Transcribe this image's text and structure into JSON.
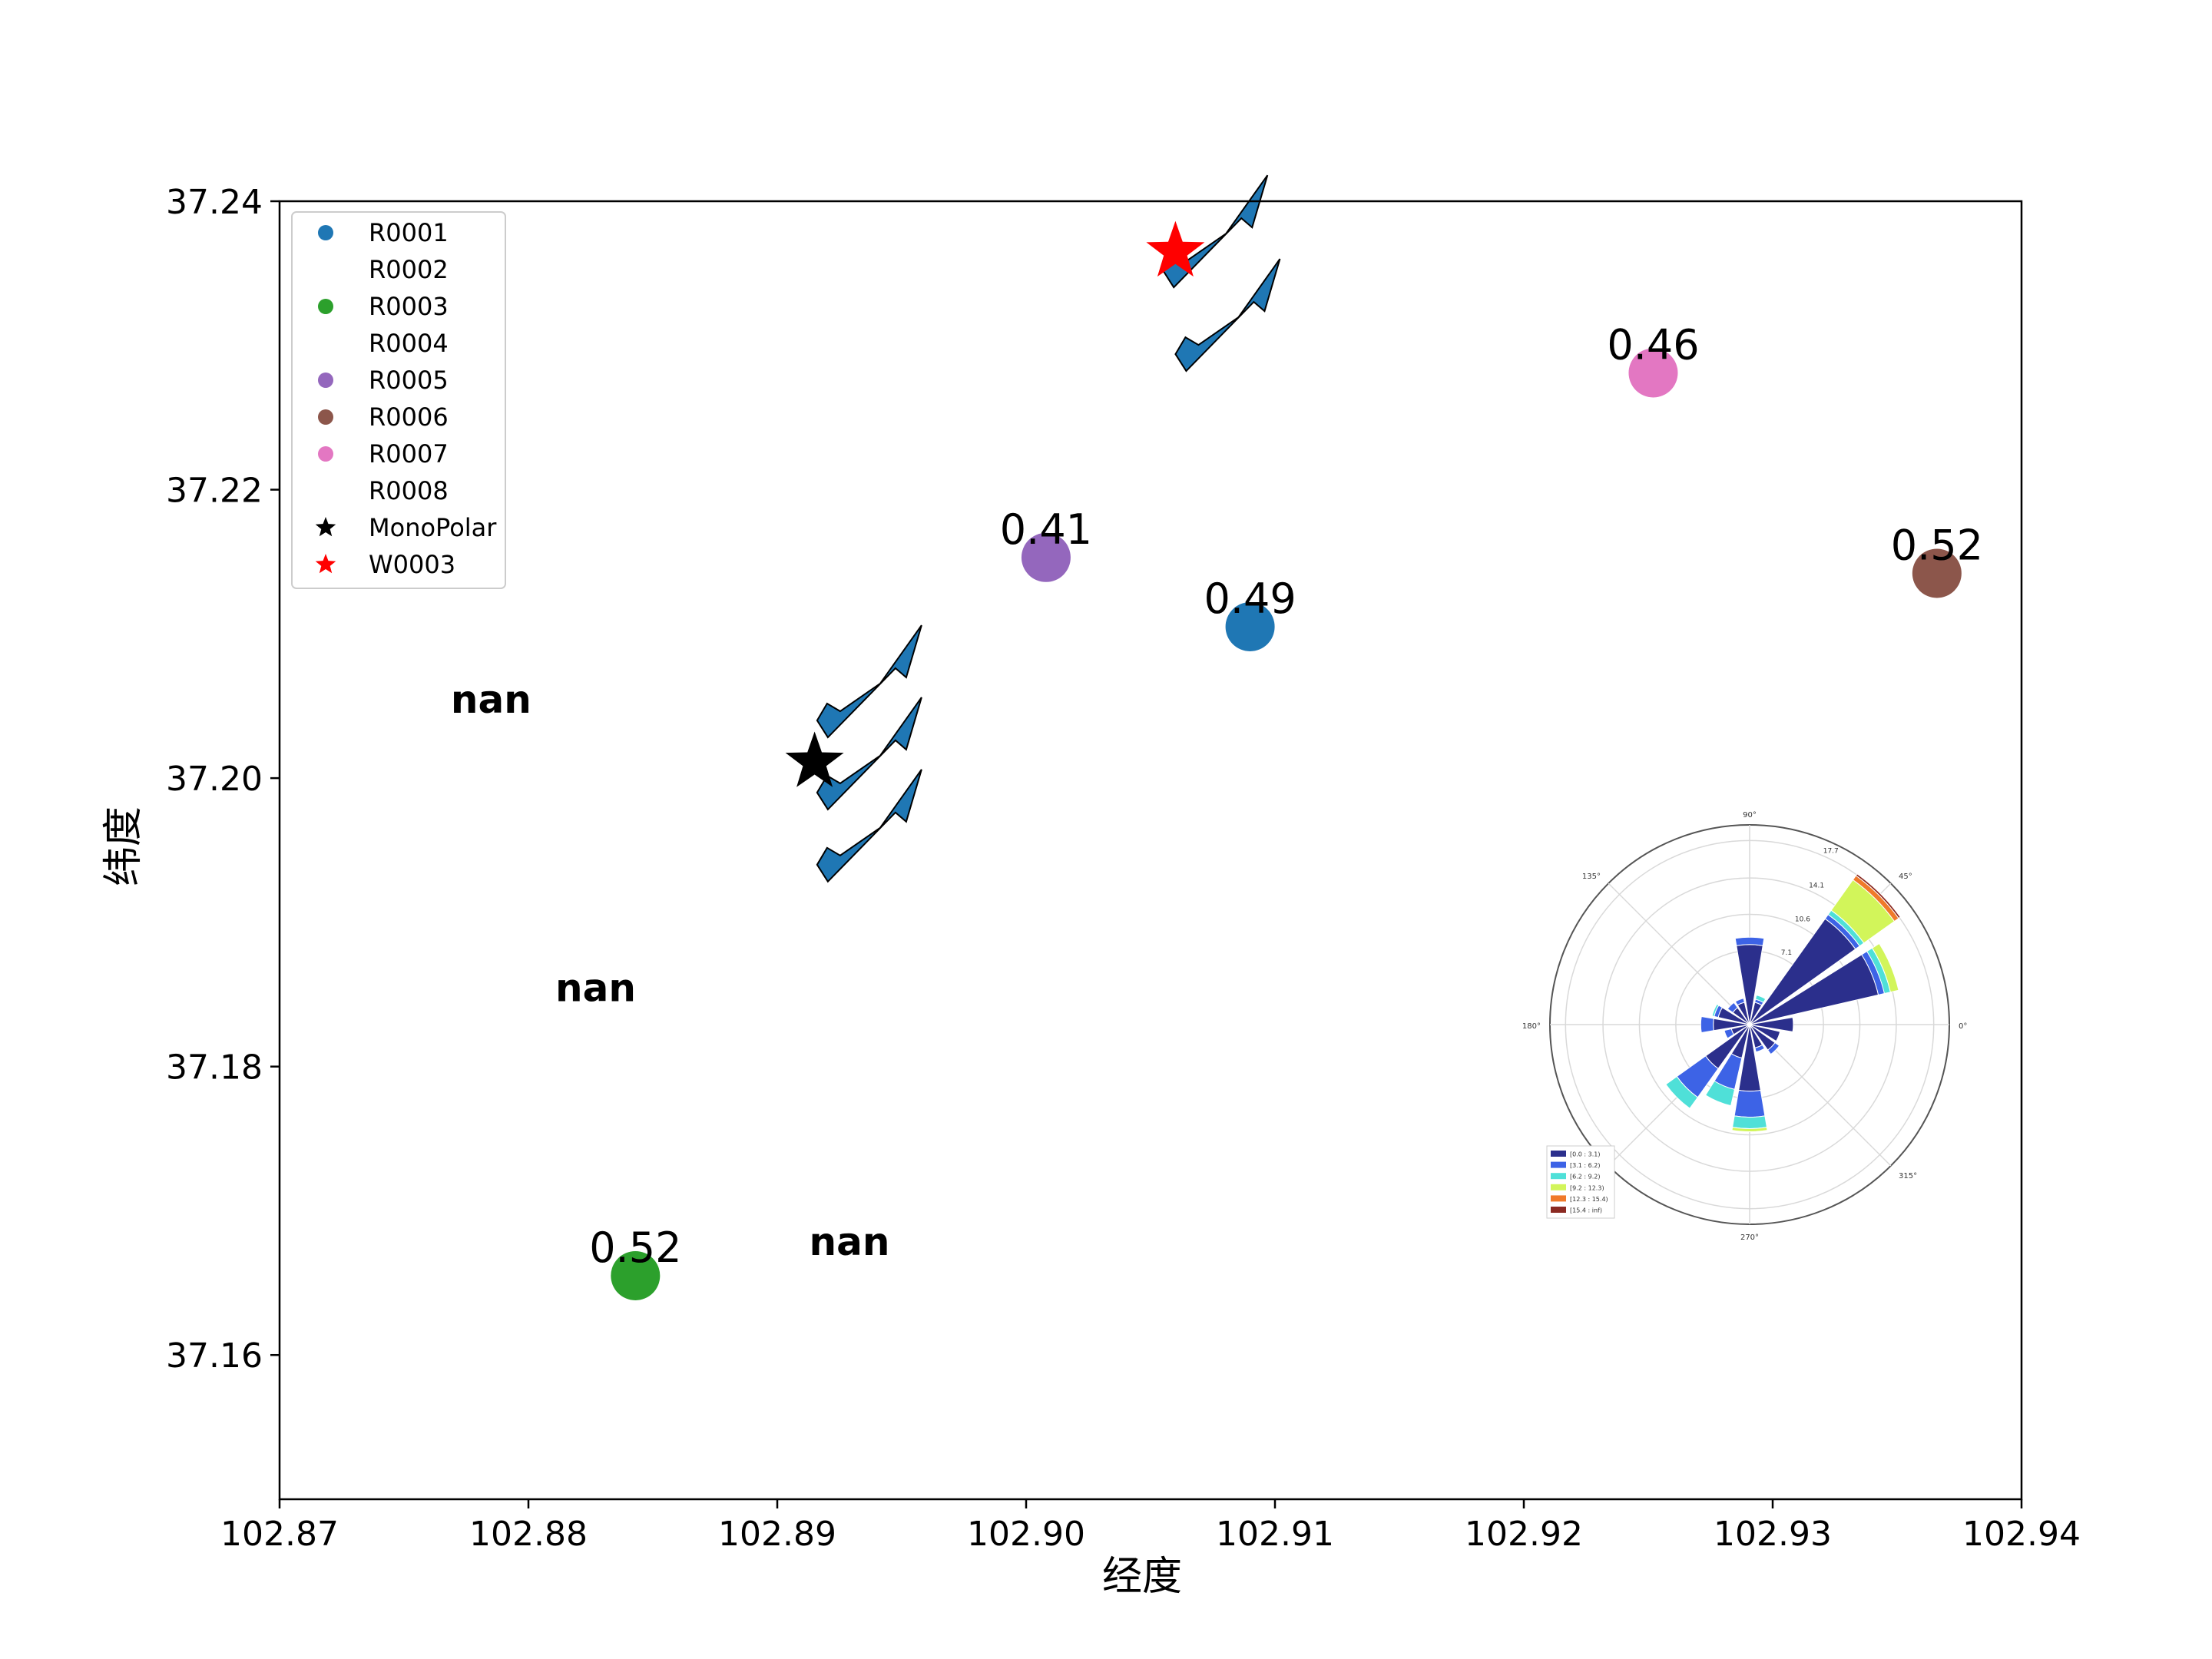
{
  "chart_data": {
    "type": "scatter",
    "xlabel": "经度",
    "ylabel": "纬度",
    "xlim": [
      102.87,
      102.94
    ],
    "ylim": [
      37.15,
      37.24
    ],
    "xticks": [
      "102.87",
      "102.88",
      "102.89",
      "102.90",
      "102.91",
      "102.92",
      "102.93",
      "102.94"
    ],
    "yticks": [
      "37.16",
      "37.18",
      "37.20",
      "37.22",
      "37.24"
    ],
    "series": [
      {
        "name": "R0001",
        "color": "#1f77b4",
        "marker": "circle",
        "x": 102.909,
        "y": 37.2105,
        "label": "0.49"
      },
      {
        "name": "R0002",
        "color": "#ff7f0e",
        "marker": "none",
        "x": 102.8785,
        "y": 37.2055,
        "label": "nan"
      },
      {
        "name": "R0003",
        "color": "#2ca02c",
        "marker": "circle",
        "x": 102.8843,
        "y": 37.1655,
        "label": "0.52"
      },
      {
        "name": "R0004",
        "color": "#d62728",
        "marker": "none",
        "x": 102.8827,
        "y": 37.1855,
        "label": "nan"
      },
      {
        "name": "R0005",
        "color": "#9467bd",
        "marker": "circle",
        "x": 102.9008,
        "y": 37.2153,
        "label": "0.41"
      },
      {
        "name": "R0006",
        "color": "#8c564b",
        "marker": "circle",
        "x": 102.9366,
        "y": 37.2142,
        "label": "0.52"
      },
      {
        "name": "R0007",
        "color": "#e377c2",
        "marker": "circle",
        "x": 102.9252,
        "y": 37.2281,
        "label": "0.46"
      },
      {
        "name": "R0008",
        "color": "#7f7f7f",
        "marker": "none",
        "x": 102.8929,
        "y": 37.1679,
        "label": "nan"
      },
      {
        "name": "MonoPolar",
        "color": "#000000",
        "marker": "star",
        "x": 102.8915,
        "y": 37.2011,
        "label": ""
      },
      {
        "name": "W0003",
        "color": "#ff0000",
        "marker": "star",
        "x": 102.906,
        "y": 37.2365,
        "label": ""
      }
    ],
    "arrows": [
      {
        "x": 102.8937,
        "y": 37.2073
      },
      {
        "x": 102.8937,
        "y": 37.2023
      },
      {
        "x": 102.8937,
        "y": 37.1973
      },
      {
        "x": 102.9076,
        "y": 37.2385
      },
      {
        "x": 102.9081,
        "y": 37.2327
      }
    ],
    "legend": "top-left",
    "grid": false,
    "windrose": {
      "angle_labels": [
        "0°",
        "45°",
        "90°",
        "135°",
        "180°",
        "270°",
        "315°"
      ],
      "radial_labels": [
        "7.1",
        "10.6",
        "14.1",
        "17.7"
      ],
      "radial_max": 19.2,
      "bins": [
        {
          "label": "[0.0 : 3.1)",
          "color": "#2b2f8c"
        },
        {
          "label": "[3.1 : 6.2)",
          "color": "#3d63e6"
        },
        {
          "label": "[6.2 : 9.2)",
          "color": "#4fe0d8"
        },
        {
          "label": "[9.2 : 12.3)",
          "color": "#d2f55a"
        },
        {
          "label": "[12.3 : 15.4)",
          "color": "#f07a2a"
        },
        {
          "label": "[15.4 : inf)",
          "color": "#8b2a22"
        }
      ],
      "directions": [
        {
          "angle": 0,
          "segments": [
            4.2,
            0,
            0,
            0,
            0,
            0
          ]
        },
        {
          "angle": 22.5,
          "segments": [
            12.7,
            0.6,
            0.6,
            0.8,
            0,
            0
          ]
        },
        {
          "angle": 45,
          "segments": [
            12.5,
            0.5,
            0.5,
            3.6,
            0.5,
            0.2
          ]
        },
        {
          "angle": 67.5,
          "segments": [
            2.2,
            0.3,
            0.4,
            0,
            0,
            0
          ]
        },
        {
          "angle": 90,
          "segments": [
            7.7,
            0.7,
            0,
            0,
            0,
            0
          ]
        },
        {
          "angle": 112.5,
          "segments": [
            2.2,
            0.4,
            0,
            0,
            0,
            0
          ]
        },
        {
          "angle": 135,
          "segments": [
            2.0,
            0.6,
            0,
            0,
            0,
            0
          ]
        },
        {
          "angle": 157.5,
          "segments": [
            3.1,
            0.4,
            0.2,
            0,
            0,
            0
          ]
        },
        {
          "angle": 180,
          "segments": [
            3.5,
            1.2,
            0,
            0,
            0,
            0
          ]
        },
        {
          "angle": 202.5,
          "segments": [
            1.8,
            0.7,
            0,
            0,
            0,
            0
          ]
        },
        {
          "angle": 225,
          "segments": [
            5.2,
            3.4,
            1.3,
            0,
            0,
            0
          ]
        },
        {
          "angle": 247.5,
          "segments": [
            3.3,
            3.1,
            1.6,
            0,
            0,
            0
          ]
        },
        {
          "angle": 270,
          "segments": [
            6.4,
            2.5,
            1.1,
            0.3,
            0,
            0
          ]
        },
        {
          "angle": 292.5,
          "segments": [
            2.3,
            0.4,
            0,
            0,
            0,
            0
          ]
        },
        {
          "angle": 315,
          "segments": [
            3.0,
            0.5,
            0,
            0,
            0,
            0
          ]
        },
        {
          "angle": 337.5,
          "segments": [
            3.0,
            0,
            0,
            0,
            0,
            0
          ]
        }
      ]
    }
  }
}
